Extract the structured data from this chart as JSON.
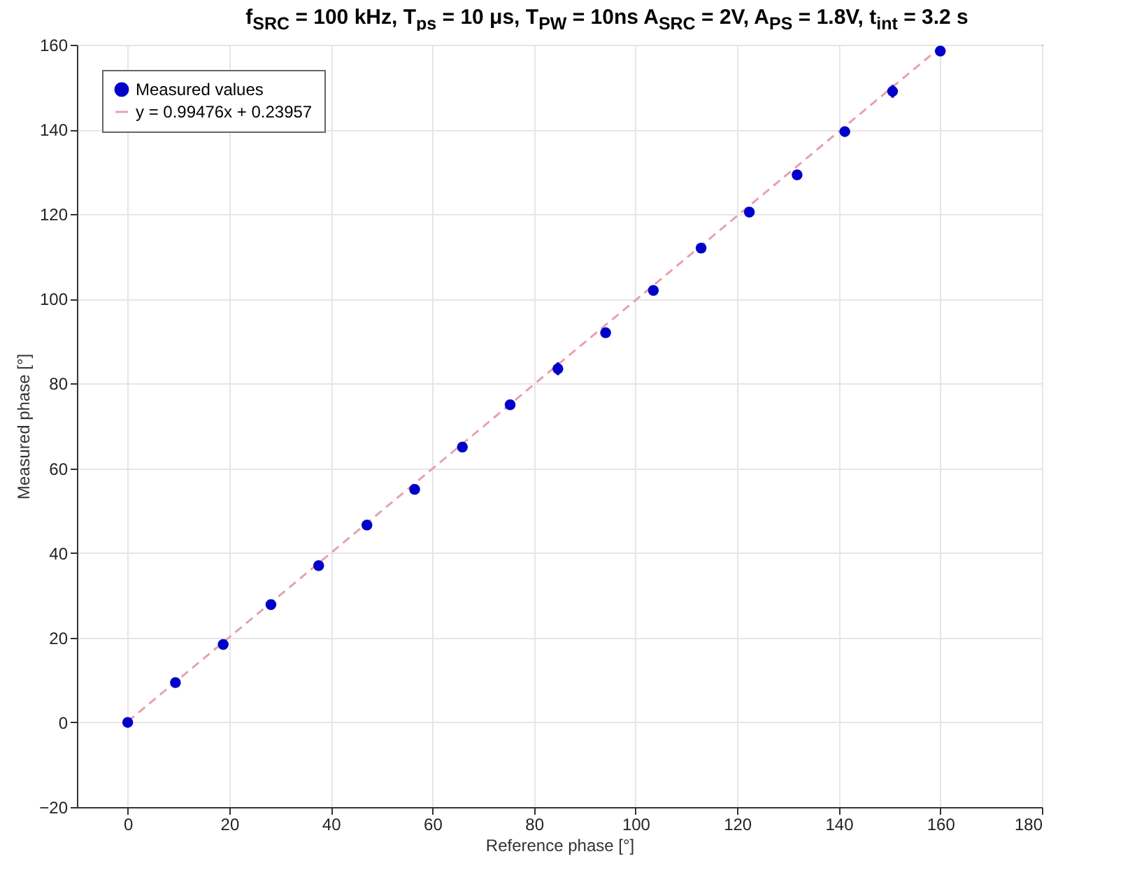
{
  "chart_data": {
    "type": "scatter",
    "title": "f$_{SRC}$ = 100 kHz, T$_{ps}$ = 10 μs, T$_{PW}$ = 10ns  A$_{SRC}$ = 2V, A$_{PS}$ = 1.8V, t$_{int}$ = 3.2 s",
    "xlabel": "Reference phase [°]",
    "ylabel": "Measured phase [°]",
    "x": [
      0,
      9.4,
      18.8,
      28.2,
      37.6,
      47.1,
      56.5,
      65.9,
      75.3,
      84.7,
      94.1,
      103.5,
      112.9,
      122.4,
      131.8,
      141.2,
      150.6,
      160
    ],
    "series": [
      {
        "name": "Measured values",
        "color": "#0000c8",
        "marker": "circle",
        "values": [
          0,
          9.4,
          18.4,
          27.8,
          37,
          46.6,
          55,
          65,
          75,
          83.5,
          92,
          102,
          112,
          120.5,
          129.3,
          139.5,
          149,
          158.5
        ],
        "errors": [
          1,
          null,
          null,
          1,
          null,
          1,
          null,
          1,
          1,
          1.5,
          null,
          null,
          null,
          1,
          null,
          1,
          1.5,
          null
        ]
      },
      {
        "name": "y = 0.99476x + 0.23957",
        "type": "line",
        "color": "#e8a0b0",
        "line_style": "dashed",
        "x": [
          0,
          160
        ],
        "values": [
          0.2,
          159.4
        ]
      }
    ],
    "xlim": [
      -10,
      180
    ],
    "xticks": [
      0,
      20,
      40,
      60,
      80,
      100,
      120,
      140,
      160,
      180
    ],
    "ylim": [
      -20,
      160
    ],
    "yticks": [
      -20,
      0,
      20,
      40,
      60,
      80,
      100,
      120,
      140,
      160
    ],
    "grid": true,
    "legend": "top left"
  }
}
